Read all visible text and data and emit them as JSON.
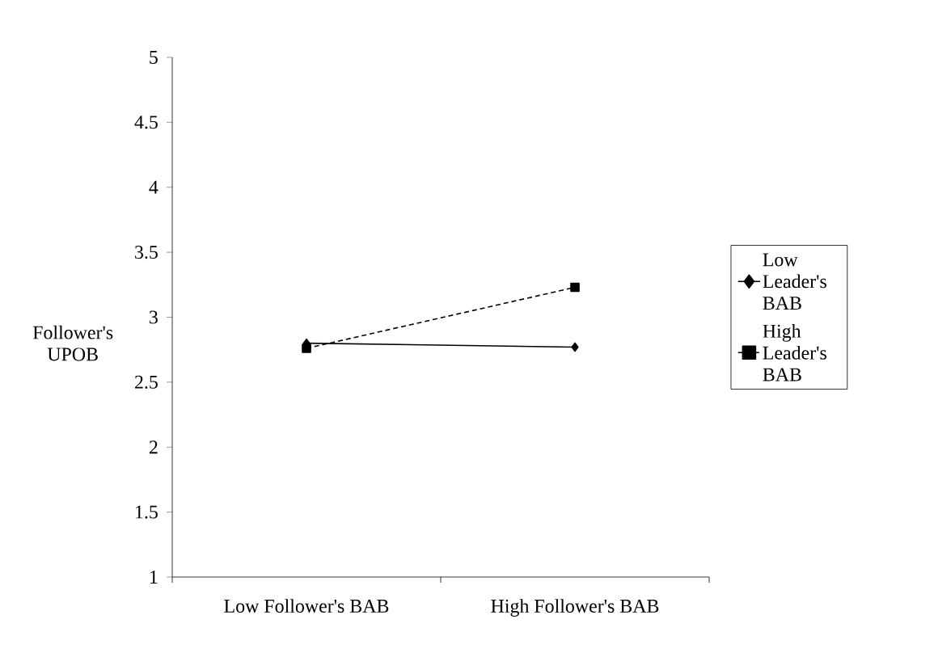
{
  "chart_data": {
    "type": "line",
    "ylabel": "Follower's UPOB",
    "categories": [
      "Low Follower's BAB",
      "High Follower's BAB"
    ],
    "series": [
      {
        "name": "Low Leader's BAB",
        "color": "#000000",
        "values": [
          2.8,
          2.77
        ],
        "marker": "diamond",
        "line_style": "solid"
      },
      {
        "name": "High Leader's BAB",
        "color": "#000000",
        "values": [
          2.76,
          3.23
        ],
        "marker": "square",
        "line_style": "dashed"
      }
    ],
    "ylim": [
      1,
      5
    ],
    "yticks": [
      1,
      1.5,
      2,
      2.5,
      3,
      3.5,
      4,
      4.5,
      5
    ],
    "grid": false,
    "legend": "right"
  }
}
